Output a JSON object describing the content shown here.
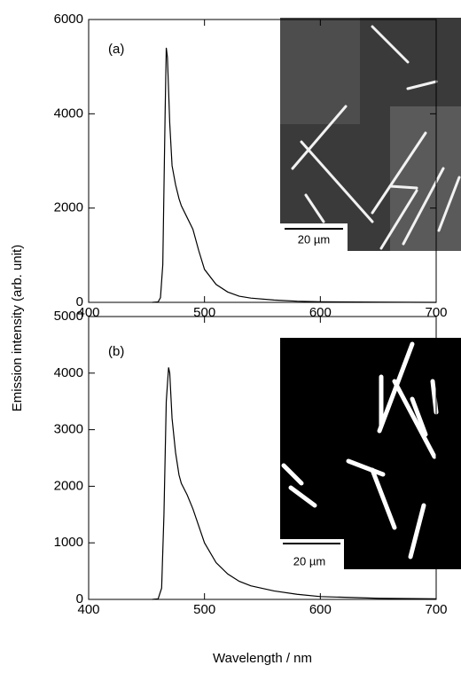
{
  "chart_data": [
    {
      "type": "line",
      "annotation": "(a)",
      "inset_label": "20 µm",
      "ylabel": "Emission intensity (arb. unit)",
      "x": [
        455,
        460,
        462,
        464,
        466,
        467,
        468,
        470,
        472,
        475,
        478,
        480,
        485,
        490,
        495,
        500,
        510,
        520,
        530,
        540,
        560,
        580,
        600,
        650,
        700
      ],
      "values": [
        0,
        10,
        100,
        800,
        4000,
        5400,
        5200,
        3800,
        2900,
        2500,
        2200,
        2050,
        1800,
        1550,
        1100,
        700,
        380,
        220,
        130,
        90,
        50,
        25,
        12,
        5,
        0
      ],
      "color": "#000000",
      "xlim": [
        400,
        700
      ],
      "xticks": [
        400,
        500,
        600,
        700
      ],
      "ylim": [
        0,
        6000
      ],
      "yticks": [
        0,
        2000,
        4000,
        6000
      ]
    },
    {
      "type": "line",
      "annotation": "(b)",
      "inset_label": "20 µm",
      "xlabel": "Wavelength  /  nm",
      "x": [
        455,
        460,
        463,
        465,
        467,
        469,
        470,
        472,
        475,
        478,
        480,
        485,
        490,
        495,
        500,
        510,
        520,
        530,
        540,
        560,
        580,
        600,
        650,
        700
      ],
      "values": [
        0,
        10,
        200,
        1500,
        3500,
        4100,
        4000,
        3200,
        2600,
        2200,
        2050,
        1850,
        1600,
        1300,
        1000,
        650,
        450,
        320,
        240,
        150,
        90,
        50,
        20,
        10
      ],
      "color": "#000000",
      "xlim": [
        400,
        700
      ],
      "xticks": [
        400,
        500,
        600,
        700
      ],
      "ylim": [
        0,
        5000
      ],
      "yticks": [
        0,
        1000,
        2000,
        3000,
        4000,
        5000
      ]
    }
  ]
}
